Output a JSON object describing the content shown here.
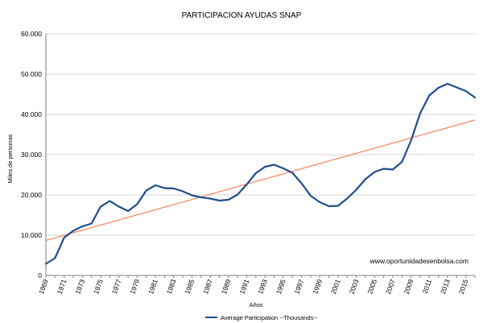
{
  "chart_data": {
    "type": "line",
    "title": "PARTICIPACION AYUDAS SNAP",
    "xlabel": "Años",
    "ylabel": "Miles de personas",
    "watermark": "www.oportunidadesenbolsa.com",
    "xlim": [
      1969,
      2016
    ],
    "ylim": [
      0,
      60000
    ],
    "y_ticks": [
      "0",
      "10.000",
      "20.000",
      "30.000",
      "40.000",
      "50.000",
      "60.000"
    ],
    "y_tick_values": [
      0,
      10000,
      20000,
      30000,
      40000,
      50000,
      60000
    ],
    "x_tick_labels": [
      "1969",
      "1971",
      "1973",
      "1975",
      "1977",
      "1979",
      "1981",
      "1983",
      "1985",
      "1987",
      "1989",
      "1991",
      "1993",
      "1995",
      "1997",
      "1999",
      "2001",
      "2003",
      "2005",
      "2007",
      "2009",
      "2011",
      "2013",
      "2015"
    ],
    "grid": true,
    "legend_position": "bottom",
    "series": [
      {
        "name": "Average Participation --Thousands--",
        "color": "#1f4e8c",
        "x": [
          1969,
          1970,
          1971,
          1972,
          1973,
          1974,
          1975,
          1976,
          1977,
          1978,
          1979,
          1980,
          1981,
          1982,
          1983,
          1984,
          1985,
          1986,
          1987,
          1988,
          1989,
          1990,
          1991,
          1992,
          1993,
          1994,
          1995,
          1996,
          1997,
          1998,
          1999,
          2000,
          2001,
          2002,
          2003,
          2004,
          2005,
          2006,
          2007,
          2008,
          2009,
          2010,
          2011,
          2012,
          2013,
          2014,
          2015,
          2016
        ],
        "values": [
          2900,
          4300,
          9400,
          11100,
          12200,
          12900,
          17100,
          18500,
          17100,
          16000,
          17700,
          21100,
          22400,
          21700,
          21600,
          20900,
          19900,
          19400,
          19100,
          18600,
          18800,
          20100,
          22600,
          25400,
          27000,
          27500,
          26600,
          25500,
          22900,
          19800,
          18200,
          17200,
          17300,
          19100,
          21300,
          23900,
          25700,
          26500,
          26300,
          28200,
          33500,
          40300,
          44700,
          46600,
          47600,
          46700,
          45800,
          44200
        ]
      }
    ],
    "trendline": {
      "color": "#f4845f",
      "x": [
        1969,
        2016
      ],
      "values": [
        8700,
        38600
      ]
    }
  }
}
